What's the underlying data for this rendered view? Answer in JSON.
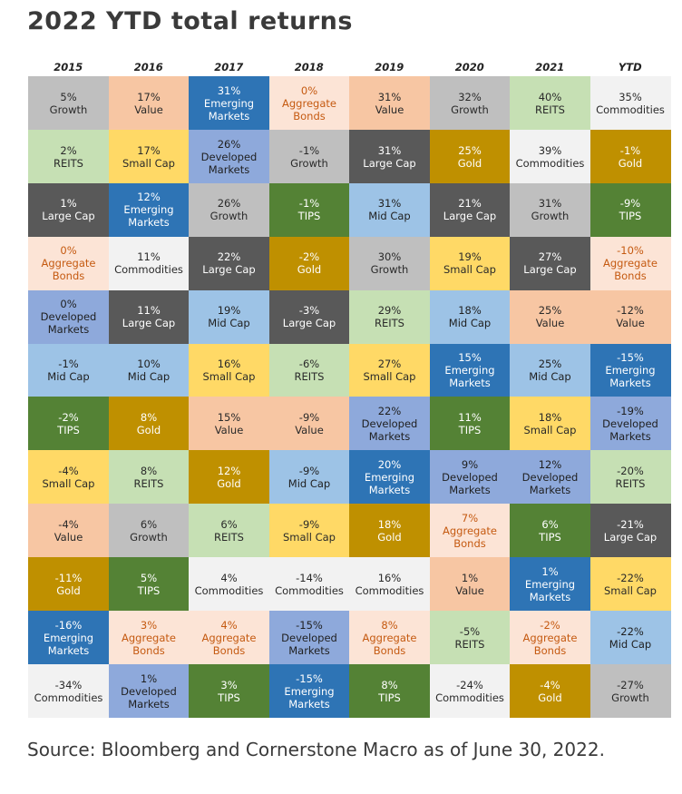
{
  "title": "2022 YTD total returns",
  "source": "Source: Bloomberg and Cornerstone Macro as of June 30, 2022.",
  "colors": {
    "Growth": {
      "bg": "#bfbfbf",
      "fg": "#2a2a2a"
    },
    "Value": {
      "bg": "#f7c6a3",
      "fg": "#2a2a2a"
    },
    "Emerging Markets": {
      "bg": "#2e74b5",
      "fg": "#ffffff"
    },
    "Aggregate Bonds": {
      "bg": "#fce4d6",
      "fg": "#c55a11"
    },
    "REITS": {
      "bg": "#c6e0b4",
      "fg": "#2a2a2a"
    },
    "Commodities": {
      "bg": "#f2f2f2",
      "fg": "#2a2a2a"
    },
    "Small Cap": {
      "bg": "#ffd966",
      "fg": "#2a2a2a"
    },
    "Developed Markets": {
      "bg": "#8ea9db",
      "fg": "#1f1f1f"
    },
    "Large Cap": {
      "bg": "#595959",
      "fg": "#ffffff"
    },
    "Gold": {
      "bg": "#bf9000",
      "fg": "#ffffff"
    },
    "TIPS": {
      "bg": "#548235",
      "fg": "#ffffff"
    },
    "Mid Cap": {
      "bg": "#9dc3e6",
      "fg": "#1f1f1f"
    }
  },
  "chart_data": {
    "type": "table",
    "title": "2022 YTD total returns",
    "columns": [
      "2015",
      "2016",
      "2017",
      "2018",
      "2019",
      "2020",
      "2021",
      "YTD"
    ],
    "data": [
      [
        {
          "value": "5%",
          "label": "Growth"
        },
        {
          "value": "2%",
          "label": "REITS"
        },
        {
          "value": "1%",
          "label": "Large Cap"
        },
        {
          "value": "0%",
          "label": "Aggregate Bonds"
        },
        {
          "value": "0%",
          "label": "Developed Markets"
        },
        {
          "value": "-1%",
          "label": "Mid Cap"
        },
        {
          "value": "-2%",
          "label": "TIPS"
        },
        {
          "value": "-4%",
          "label": "Small Cap"
        },
        {
          "value": "-4%",
          "label": "Value"
        },
        {
          "value": "-11%",
          "label": "Gold"
        },
        {
          "value": "-16%",
          "label": "Emerging Markets"
        },
        {
          "value": "-34%",
          "label": "Commodities"
        }
      ],
      [
        {
          "value": "17%",
          "label": "Value"
        },
        {
          "value": "17%",
          "label": "Small Cap"
        },
        {
          "value": "12%",
          "label": "Emerging Markets"
        },
        {
          "value": "11%",
          "label": "Commodities"
        },
        {
          "value": "11%",
          "label": "Large Cap"
        },
        {
          "value": "10%",
          "label": "Mid Cap"
        },
        {
          "value": "8%",
          "label": "Gold"
        },
        {
          "value": "8%",
          "label": "REITS"
        },
        {
          "value": "6%",
          "label": "Growth"
        },
        {
          "value": "5%",
          "label": "TIPS"
        },
        {
          "value": "3%",
          "label": "Aggregate Bonds"
        },
        {
          "value": "1%",
          "label": "Developed Markets"
        }
      ],
      [
        {
          "value": "31%",
          "label": "Emerging Markets"
        },
        {
          "value": "26%",
          "label": "Developed Markets"
        },
        {
          "value": "26%",
          "label": "Growth"
        },
        {
          "value": "22%",
          "label": "Large Cap"
        },
        {
          "value": "19%",
          "label": "Mid Cap"
        },
        {
          "value": "16%",
          "label": "Small Cap"
        },
        {
          "value": "15%",
          "label": "Value"
        },
        {
          "value": "12%",
          "label": "Gold"
        },
        {
          "value": "6%",
          "label": "REITS"
        },
        {
          "value": "4%",
          "label": "Commodities"
        },
        {
          "value": "4%",
          "label": "Aggregate Bonds"
        },
        {
          "value": "3%",
          "label": "TIPS"
        }
      ],
      [
        {
          "value": "0%",
          "label": "Aggregate Bonds"
        },
        {
          "value": "-1%",
          "label": "Growth"
        },
        {
          "value": "-1%",
          "label": "TIPS"
        },
        {
          "value": "-2%",
          "label": "Gold"
        },
        {
          "value": "-3%",
          "label": "Large Cap"
        },
        {
          "value": "-6%",
          "label": "REITS"
        },
        {
          "value": "-9%",
          "label": "Value"
        },
        {
          "value": "-9%",
          "label": "Mid Cap"
        },
        {
          "value": "-9%",
          "label": "Small Cap"
        },
        {
          "value": "-14%",
          "label": "Commodities"
        },
        {
          "value": "-15%",
          "label": "Developed Markets"
        },
        {
          "value": "-15%",
          "label": "Emerging Markets"
        }
      ],
      [
        {
          "value": "31%",
          "label": "Value"
        },
        {
          "value": "31%",
          "label": "Large Cap"
        },
        {
          "value": "31%",
          "label": "Mid Cap"
        },
        {
          "value": "30%",
          "label": "Growth"
        },
        {
          "value": "29%",
          "label": "REITS"
        },
        {
          "value": "27%",
          "label": "Small Cap"
        },
        {
          "value": "22%",
          "label": "Developed Markets"
        },
        {
          "value": "20%",
          "label": "Emerging Markets"
        },
        {
          "value": "18%",
          "label": "Gold"
        },
        {
          "value": "16%",
          "label": "Commodities"
        },
        {
          "value": "8%",
          "label": "Aggregate Bonds"
        },
        {
          "value": "8%",
          "label": "TIPS"
        }
      ],
      [
        {
          "value": "32%",
          "label": "Growth"
        },
        {
          "value": "25%",
          "label": "Gold"
        },
        {
          "value": "21%",
          "label": "Large Cap"
        },
        {
          "value": "19%",
          "label": "Small Cap"
        },
        {
          "value": "18%",
          "label": "Mid Cap"
        },
        {
          "value": "15%",
          "label": "Emerging Markets"
        },
        {
          "value": "11%",
          "label": "TIPS"
        },
        {
          "value": "9%",
          "label": "Developed Markets"
        },
        {
          "value": "7%",
          "label": "Aggregate Bonds"
        },
        {
          "value": "1%",
          "label": "Value"
        },
        {
          "value": "-5%",
          "label": "REITS"
        },
        {
          "value": "-24%",
          "label": "Commodities"
        }
      ],
      [
        {
          "value": "40%",
          "label": "REITS"
        },
        {
          "value": "39%",
          "label": "Commodities"
        },
        {
          "value": "31%",
          "label": "Growth"
        },
        {
          "value": "27%",
          "label": "Large Cap"
        },
        {
          "value": "25%",
          "label": "Value"
        },
        {
          "value": "25%",
          "label": "Mid Cap"
        },
        {
          "value": "18%",
          "label": "Small Cap"
        },
        {
          "value": "12%",
          "label": "Developed Markets"
        },
        {
          "value": "6%",
          "label": "TIPS"
        },
        {
          "value": "1%",
          "label": "Emerging Markets"
        },
        {
          "value": "-2%",
          "label": "Aggregate Bonds"
        },
        {
          "value": "-4%",
          "label": "Gold"
        }
      ],
      [
        {
          "value": "35%",
          "label": "Commodities"
        },
        {
          "value": "-1%",
          "label": "Gold"
        },
        {
          "value": "-9%",
          "label": "TIPS"
        },
        {
          "value": "-10%",
          "label": "Aggregate Bonds"
        },
        {
          "value": "-12%",
          "label": "Value"
        },
        {
          "value": "-15%",
          "label": "Emerging Markets"
        },
        {
          "value": "-19%",
          "label": "Developed Markets"
        },
        {
          "value": "-20%",
          "label": "REITS"
        },
        {
          "value": "-21%",
          "label": "Large Cap"
        },
        {
          "value": "-22%",
          "label": "Small Cap"
        },
        {
          "value": "-22%",
          "label": "Mid Cap"
        },
        {
          "value": "-27%",
          "label": "Growth"
        }
      ]
    ]
  }
}
